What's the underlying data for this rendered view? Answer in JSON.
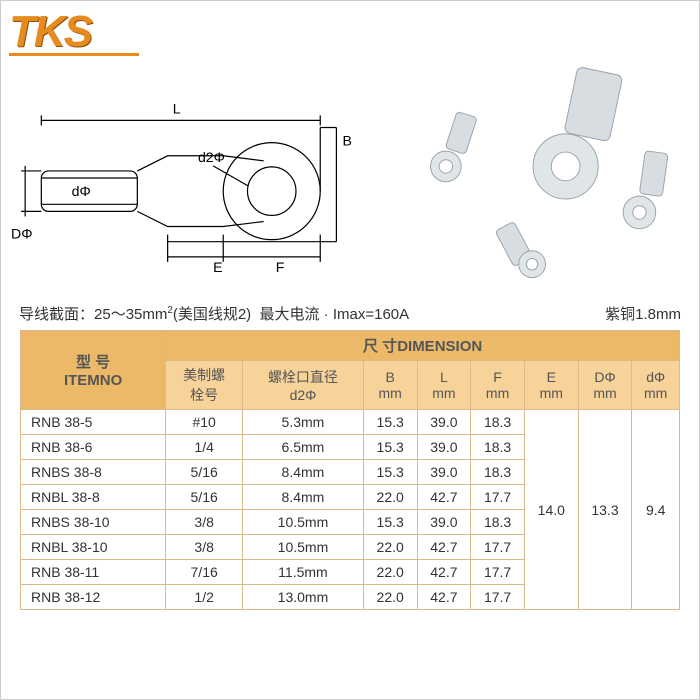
{
  "brand": "TKS",
  "diagram": {
    "L": "L",
    "B": "B",
    "d2": "d2",
    "F": "F",
    "E": "E",
    "D": "D",
    "d": "d",
    "phi": "Φ"
  },
  "specline": {
    "left_label": "导线截面：",
    "range": "25～35mm",
    "gauge": "(美国线规2)",
    "max_label": "最大电流 · Imax=160A",
    "material": "紫铜1.8mm"
  },
  "headers": {
    "item_cn": "型 号",
    "item_en": "ITEMNO",
    "dim_cn": "尺 寸",
    "dim_en": "DIMENSION",
    "screw_cn": "美制螺",
    "screw_cn2": "栓号",
    "d2_cn": "螺栓口直径",
    "d2_en": "d2Φ",
    "B": "B",
    "L": "L",
    "F": "F",
    "E": "E",
    "Dphi": "DΦ",
    "dphi": "dΦ",
    "mm": "mm"
  },
  "rows": [
    {
      "item": "RNB 38-5",
      "screw": "#10",
      "d2": "5.3mm",
      "B": "15.3",
      "L": "39.0",
      "F": "18.3"
    },
    {
      "item": "RNB 38-6",
      "screw": "1/4",
      "d2": "6.5mm",
      "B": "15.3",
      "L": "39.0",
      "F": "18.3"
    },
    {
      "item": "RNBS 38-8",
      "screw": "5/16",
      "d2": "8.4mm",
      "B": "15.3",
      "L": "39.0",
      "F": "18.3"
    },
    {
      "item": "RNBL 38-8",
      "screw": "5/16",
      "d2": "8.4mm",
      "B": "22.0",
      "L": "42.7",
      "F": "17.7"
    },
    {
      "item": "RNBS 38-10",
      "screw": "3/8",
      "d2": "10.5mm",
      "B": "15.3",
      "L": "39.0",
      "F": "18.3"
    },
    {
      "item": "RNBL 38-10",
      "screw": "3/8",
      "d2": "10.5mm",
      "B": "22.0",
      "L": "42.7",
      "F": "17.7"
    },
    {
      "item": "RNB 38-11",
      "screw": "7/16",
      "d2": "11.5mm",
      "B": "22.0",
      "L": "42.7",
      "F": "17.7"
    },
    {
      "item": "RNB 38-12",
      "screw": "1/2",
      "d2": "13.0mm",
      "B": "22.0",
      "L": "42.7",
      "F": "17.7"
    }
  ],
  "merged": {
    "E": "14.0",
    "D": "13.3",
    "d": "9.4"
  },
  "colors": {
    "accent": "#e88b1f",
    "header_bg1": "#ecb968",
    "header_bg2": "#f7d39a",
    "border": "#dcb98a"
  }
}
